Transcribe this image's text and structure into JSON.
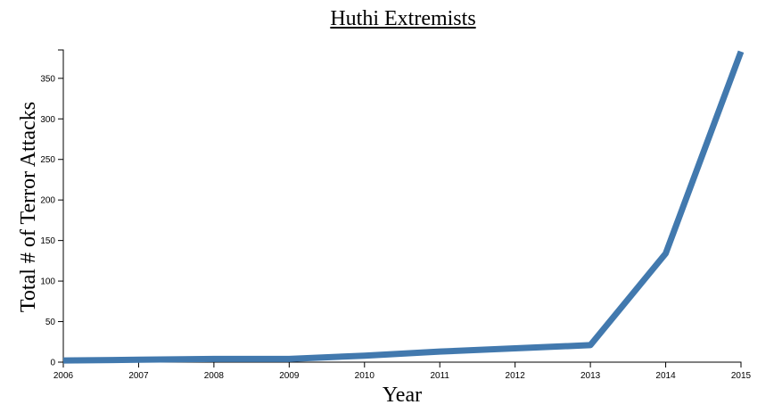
{
  "chart_data": {
    "type": "line",
    "title": "Huthi Extremists",
    "xlabel": "Year",
    "ylabel": "Total # of Terror Attacks",
    "x": [
      2006,
      2007,
      2008,
      2009,
      2010,
      2011,
      2012,
      2013,
      2014,
      2015
    ],
    "series": [
      {
        "values": [
          2,
          3,
          4,
          4,
          8,
          13,
          17,
          21,
          134,
          383
        ]
      }
    ],
    "xlim": [
      2006,
      2015
    ],
    "ylim": [
      0,
      385
    ],
    "yticks": [
      0,
      50,
      100,
      150,
      200,
      250,
      300,
      350
    ],
    "grid": false,
    "line_color": "#4279ae"
  }
}
